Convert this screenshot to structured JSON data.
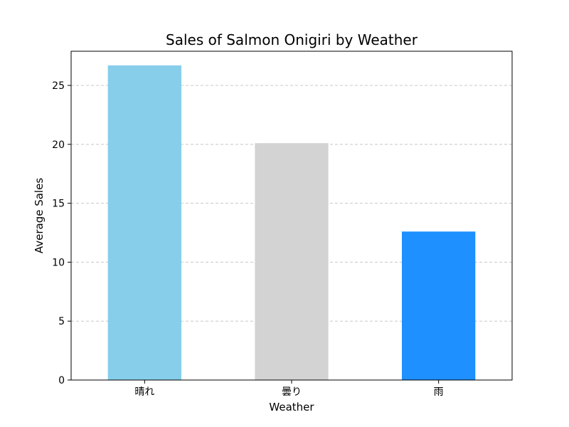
{
  "chart_data": {
    "type": "bar",
    "title": "Sales of Salmon Onigiri by Weather",
    "xlabel": "Weather",
    "ylabel": "Average Sales",
    "categories": [
      "晴れ",
      "曇り",
      "雨"
    ],
    "values": [
      26.7,
      20.1,
      12.6
    ],
    "colors": [
      "#87ceeb",
      "#d3d3d3",
      "#1e90ff"
    ],
    "ylim": [
      0,
      27.9
    ],
    "yticks": [
      0,
      5,
      10,
      15,
      20,
      25
    ],
    "grid": "y-dashed",
    "legend": "none"
  }
}
